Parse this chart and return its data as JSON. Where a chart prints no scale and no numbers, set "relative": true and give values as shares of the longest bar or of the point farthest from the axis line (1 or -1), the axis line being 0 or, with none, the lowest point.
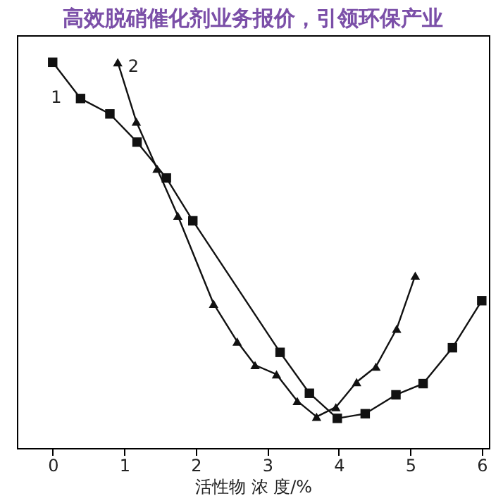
{
  "chart_data": {
    "type": "line",
    "title": "高效脱硝催化剂业务报价，引领环保产业",
    "xlabel": "活性物 浓 度/%",
    "relative": true,
    "xlim": [
      -0.5,
      6.1
    ],
    "xticks": [
      0,
      1,
      2,
      3,
      4,
      5,
      6
    ],
    "grid": false,
    "legend": false,
    "line_style": "solid",
    "series": [
      {
        "name": "1",
        "color": "#111111",
        "marker": "square",
        "x": [
          0,
          0.39,
          0.8,
          1.18,
          1.59,
          1.96,
          3.18,
          3.59,
          3.98,
          4.37,
          4.8,
          5.18,
          5.59,
          6.0
        ],
        "values": [
          1.0,
          0.906,
          0.866,
          0.793,
          0.7,
          0.589,
          0.248,
          0.142,
          0.077,
          0.089,
          0.138,
          0.167,
          0.26,
          0.382
        ]
      },
      {
        "name": "2",
        "color": "#111111",
        "marker": "triangle",
        "x": [
          0.91,
          1.17,
          1.46,
          1.75,
          2.25,
          2.58,
          2.83,
          3.13,
          3.42,
          3.69,
          3.96,
          4.25,
          4.52,
          4.81,
          5.07
        ],
        "values": [
          1.0,
          0.846,
          0.724,
          0.602,
          0.374,
          0.276,
          0.215,
          0.191,
          0.122,
          0.081,
          0.106,
          0.171,
          0.211,
          0.309,
          0.447
        ]
      }
    ]
  }
}
